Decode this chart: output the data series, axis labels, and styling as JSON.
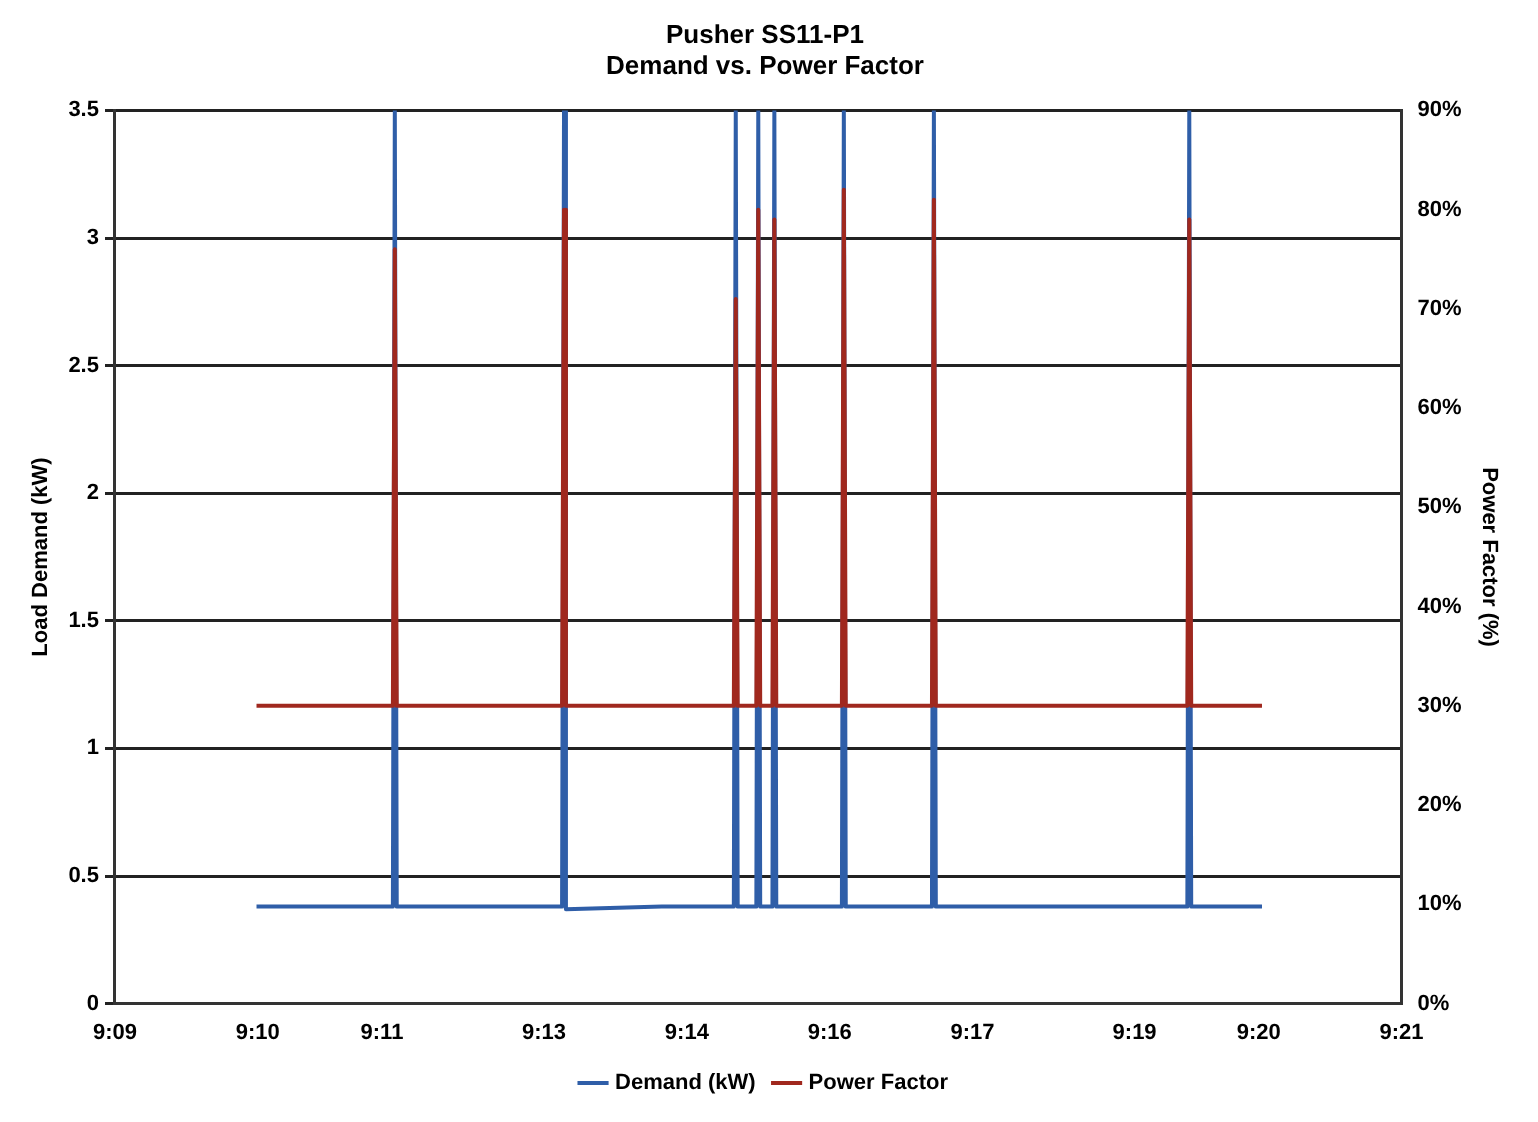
{
  "chart_data": {
    "type": "line",
    "title": "Pusher SS11-P1",
    "subtitle": "Demand vs. Power Factor",
    "ylabel": "Load Demand (kW)",
    "y2label": "Power Factor (%)",
    "xlim": [
      9.15,
      9.35
    ],
    "xticks": [
      {
        "value": 9.15,
        "label": "9:09"
      },
      {
        "value": 9.1722,
        "label": "9:10"
      },
      {
        "value": 9.1915,
        "label": "9:11"
      },
      {
        "value": 9.2167,
        "label": "9:13"
      },
      {
        "value": 9.2389,
        "label": "9:14"
      },
      {
        "value": 9.2611,
        "label": "9:16"
      },
      {
        "value": 9.2833,
        "label": "9:17"
      },
      {
        "value": 9.3085,
        "label": "9:19"
      },
      {
        "value": 9.3278,
        "label": "9:20"
      },
      {
        "value": 9.35,
        "label": "9:21"
      }
    ],
    "ylim": [
      0,
      3.5
    ],
    "yticks": [
      0,
      0.5,
      1,
      1.5,
      2,
      2.5,
      3,
      3.5
    ],
    "y2lim": [
      0,
      90
    ],
    "y2ticks": [
      {
        "value": 0,
        "label": "0%"
      },
      {
        "value": 10,
        "label": "10%"
      },
      {
        "value": 20,
        "label": "20%"
      },
      {
        "value": 30,
        "label": "30%"
      },
      {
        "value": 40,
        "label": "40%"
      },
      {
        "value": 50,
        "label": "50%"
      },
      {
        "value": 60,
        "label": "60%"
      },
      {
        "value": 70,
        "label": "70%"
      },
      {
        "value": 80,
        "label": "80%"
      },
      {
        "value": 90,
        "label": "90%"
      }
    ],
    "grid": "y",
    "legend": "bottom",
    "marker": "none",
    "line_style": "solid",
    "series": [
      {
        "name": "Demand (kW)",
        "color": "#2f5ea8",
        "x": [
          9.172,
          9.185,
          9.1932,
          9.1935,
          9.1938,
          9.205,
          9.2195,
          9.2198,
          9.2201,
          9.235,
          9.2462,
          9.2465,
          9.2468,
          9.2497,
          9.25,
          9.2503,
          9.2522,
          9.2525,
          9.2528,
          9.263,
          9.2633,
          9.2636,
          9.277,
          9.2773,
          9.2776,
          9.3,
          9.3167,
          9.317,
          9.3173,
          9.3283
        ],
        "values": [
          0.38,
          0.38,
          0.38,
          3.5,
          0.38,
          0.38,
          0.38,
          3.5,
          0.37,
          0.38,
          0.38,
          3.5,
          0.38,
          0.38,
          3.5,
          0.38,
          0.38,
          3.5,
          0.38,
          0.38,
          3.5,
          0.38,
          0.38,
          3.5,
          0.38,
          0.38,
          0.38,
          3.5,
          0.38,
          0.38
        ]
      },
      {
        "name": "Power Factor",
        "color": "#a0281e",
        "axis": "y2",
        "x": [
          9.172,
          9.185,
          9.1932,
          9.1935,
          9.1938,
          9.205,
          9.2195,
          9.2198,
          9.2201,
          9.235,
          9.2462,
          9.2465,
          9.2468,
          9.2497,
          9.25,
          9.2503,
          9.2522,
          9.2525,
          9.2528,
          9.263,
          9.2633,
          9.2636,
          9.277,
          9.2773,
          9.2776,
          9.3,
          9.3167,
          9.317,
          9.3173,
          9.3283
        ],
        "values": [
          30,
          30,
          30,
          76,
          30,
          30,
          30,
          80,
          30,
          30,
          30,
          71,
          30,
          30,
          80,
          30,
          30,
          79,
          30,
          30,
          82,
          30,
          30,
          81,
          30,
          30,
          30,
          79,
          30,
          30
        ]
      }
    ]
  }
}
